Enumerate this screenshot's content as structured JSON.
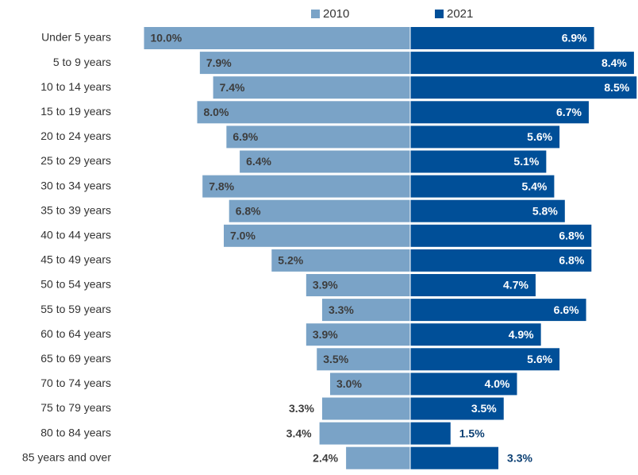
{
  "chart_data": {
    "type": "bar",
    "orientation": "horizontal",
    "layout": "pyramid",
    "categories": [
      "Under 5 years",
      "5 to 9 years",
      "10 to 14 years",
      "15 to 19 years",
      "20 to 24 years",
      "25 to 29 years",
      "30 to 34 years",
      "35 to 39 years",
      "40 to 44 years",
      "45 to 49 years",
      "50 to 54 years",
      "55 to 59 years",
      "60 to 64 years",
      "65 to 69 years",
      "70 to 74 years",
      "75 to 79 years",
      "80 to 84 years",
      "85 years and over"
    ],
    "series": [
      {
        "name": "2010",
        "color": "#7aa3c7",
        "values": [
          10.0,
          7.9,
          7.4,
          8.0,
          6.9,
          6.4,
          7.8,
          6.8,
          7.0,
          5.2,
          3.9,
          3.3,
          3.9,
          3.5,
          3.0,
          3.3,
          3.4,
          2.4
        ],
        "value_labels": [
          "10.0%",
          "7.9%",
          "7.4%",
          "8.0%",
          "6.9%",
          "6.4%",
          "7.8%",
          "6.8%",
          "7.0%",
          "5.2%",
          "3.9%",
          "3.3%",
          "3.9%",
          "3.5%",
          "3.0%",
          "3.3%",
          "3.4%",
          "2.4%"
        ]
      },
      {
        "name": "2021",
        "color": "#004f98",
        "values": [
          6.9,
          8.4,
          8.5,
          6.7,
          5.6,
          5.1,
          5.4,
          5.8,
          6.8,
          6.8,
          4.7,
          6.6,
          4.9,
          5.6,
          4.0,
          3.5,
          1.5,
          3.3
        ],
        "value_labels": [
          "6.9%",
          "8.4%",
          "8.5%",
          "6.7%",
          "5.6%",
          "5.1%",
          "5.4%",
          "5.8%",
          "6.8%",
          "6.8%",
          "4.7%",
          "6.6%",
          "4.9%",
          "5.6%",
          "4.0%",
          "3.5%",
          "1.5%",
          "3.3%"
        ]
      }
    ]
  }
}
